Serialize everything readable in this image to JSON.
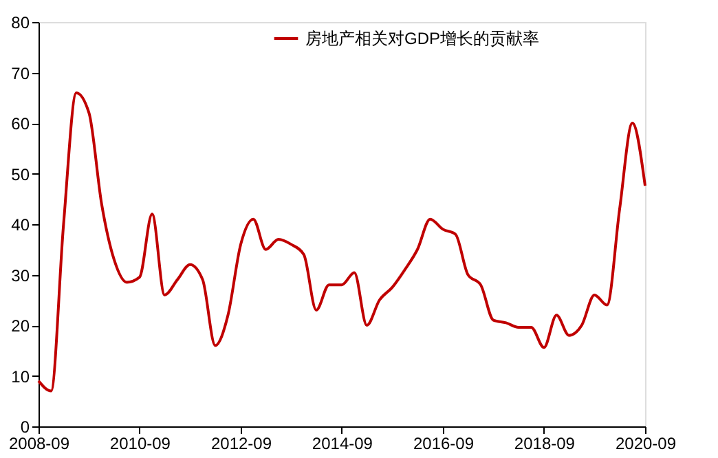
{
  "chart_data": {
    "type": "line",
    "x": [
      "2008-09",
      "2008-12",
      "2009-03",
      "2009-06",
      "2009-09",
      "2009-12",
      "2010-03",
      "2010-06",
      "2010-09",
      "2010-12",
      "2011-03",
      "2011-06",
      "2011-09",
      "2011-12",
      "2012-03",
      "2012-06",
      "2012-09",
      "2012-12",
      "2013-03",
      "2013-06",
      "2013-09",
      "2013-12",
      "2014-03",
      "2014-06",
      "2014-09",
      "2014-12",
      "2015-03",
      "2015-06",
      "2015-09",
      "2015-12",
      "2016-03",
      "2016-06",
      "2016-09",
      "2016-12",
      "2017-03",
      "2017-06",
      "2017-09",
      "2017-12",
      "2018-03",
      "2018-06",
      "2018-09",
      "2018-12",
      "2019-03",
      "2019-06",
      "2019-09",
      "2019-12",
      "2020-03",
      "2020-06",
      "2020-09"
    ],
    "series": [
      {
        "name": "房地产相关对GDP增长的贡献率",
        "color": "#c00000",
        "values": [
          9,
          7,
          40,
          66,
          62,
          44,
          33,
          28.5,
          29.5,
          42,
          26,
          29,
          32,
          29,
          16,
          22,
          36,
          41,
          35,
          37,
          36,
          34,
          23,
          28,
          28,
          30.4,
          20,
          25,
          27.5,
          31,
          35,
          41,
          39,
          38,
          30,
          28,
          21,
          20.5,
          19.6,
          19.6,
          15.6,
          22,
          18,
          20,
          26,
          24,
          43,
          60,
          47.6
        ]
      }
    ],
    "xlim": [
      "2008-09",
      "2020-09"
    ],
    "xticks": [
      {
        "value": "2008-09",
        "label": "2008-09"
      },
      {
        "value": "2010-09",
        "label": "2010-09"
      },
      {
        "value": "2012-09",
        "label": "2012-09"
      },
      {
        "value": "2014-09",
        "label": "2014-09"
      },
      {
        "value": "2016-09",
        "label": "2016-09"
      },
      {
        "value": "2018-09",
        "label": "2018-09"
      },
      {
        "value": "2020-09",
        "label": "2020-09"
      }
    ],
    "ylim": [
      0,
      80
    ],
    "yticks": [
      0,
      10,
      20,
      30,
      40,
      50,
      60,
      70,
      80
    ],
    "grid": false,
    "legend": "top",
    "marker": "none",
    "line_style": "solid"
  }
}
